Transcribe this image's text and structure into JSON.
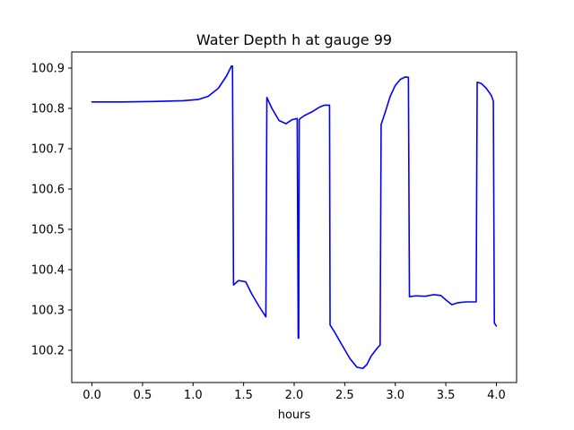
{
  "chart_data": {
    "type": "line",
    "title": "Water Depth h at gauge 99",
    "xlabel": "hours",
    "ylabel": "",
    "xlim": [
      -0.2,
      4.2
    ],
    "ylim": [
      100.12,
      100.94
    ],
    "xticks": [
      0.0,
      0.5,
      1.0,
      1.5,
      2.0,
      2.5,
      3.0,
      3.5,
      4.0
    ],
    "xtick_labels": [
      "0.0",
      "0.5",
      "1.0",
      "1.5",
      "2.0",
      "2.5",
      "3.0",
      "3.5",
      "4.0"
    ],
    "yticks": [
      100.2,
      100.3,
      100.4,
      100.5,
      100.6,
      100.7,
      100.8,
      100.9
    ],
    "ytick_labels": [
      "100.2",
      "100.3",
      "100.4",
      "100.5",
      "100.6",
      "100.7",
      "100.8",
      "100.9"
    ],
    "grid": false,
    "series": [
      {
        "color": "#0000ff",
        "x": [
          0.0,
          0.3,
          0.6,
          0.9,
          1.05,
          1.15,
          1.25,
          1.33,
          1.38,
          1.39,
          1.4,
          1.45,
          1.52,
          1.58,
          1.65,
          1.72,
          1.73,
          1.78,
          1.85,
          1.92,
          1.98,
          2.03,
          2.04,
          2.045,
          2.05,
          2.06,
          2.1,
          2.18,
          2.25,
          2.3,
          2.35,
          2.355,
          2.4,
          2.48,
          2.55,
          2.62,
          2.68,
          2.72,
          2.76,
          2.82,
          2.85,
          2.86,
          2.9,
          2.95,
          3.0,
          3.05,
          3.1,
          3.13,
          3.14,
          3.2,
          3.3,
          3.38,
          3.45,
          3.5,
          3.56,
          3.62,
          3.7,
          3.8,
          3.81,
          3.85,
          3.9,
          3.95,
          3.97,
          3.98,
          4.0
        ],
        "y": [
          100.816,
          100.816,
          100.817,
          100.819,
          100.822,
          100.83,
          100.85,
          100.88,
          100.905,
          100.905,
          100.362,
          100.373,
          100.37,
          100.34,
          100.31,
          100.283,
          100.827,
          100.8,
          100.77,
          100.762,
          100.772,
          100.775,
          100.23,
          100.23,
          100.772,
          100.775,
          100.782,
          100.792,
          100.803,
          100.808,
          100.808,
          100.263,
          100.245,
          100.21,
          100.18,
          100.158,
          100.155,
          100.165,
          100.185,
          100.205,
          100.213,
          100.76,
          100.79,
          100.83,
          100.857,
          100.872,
          100.878,
          100.877,
          100.333,
          100.335,
          100.334,
          100.338,
          100.336,
          100.325,
          100.313,
          100.318,
          100.32,
          100.32,
          100.865,
          100.862,
          100.85,
          100.832,
          100.818,
          100.268,
          100.26
        ]
      }
    ]
  }
}
